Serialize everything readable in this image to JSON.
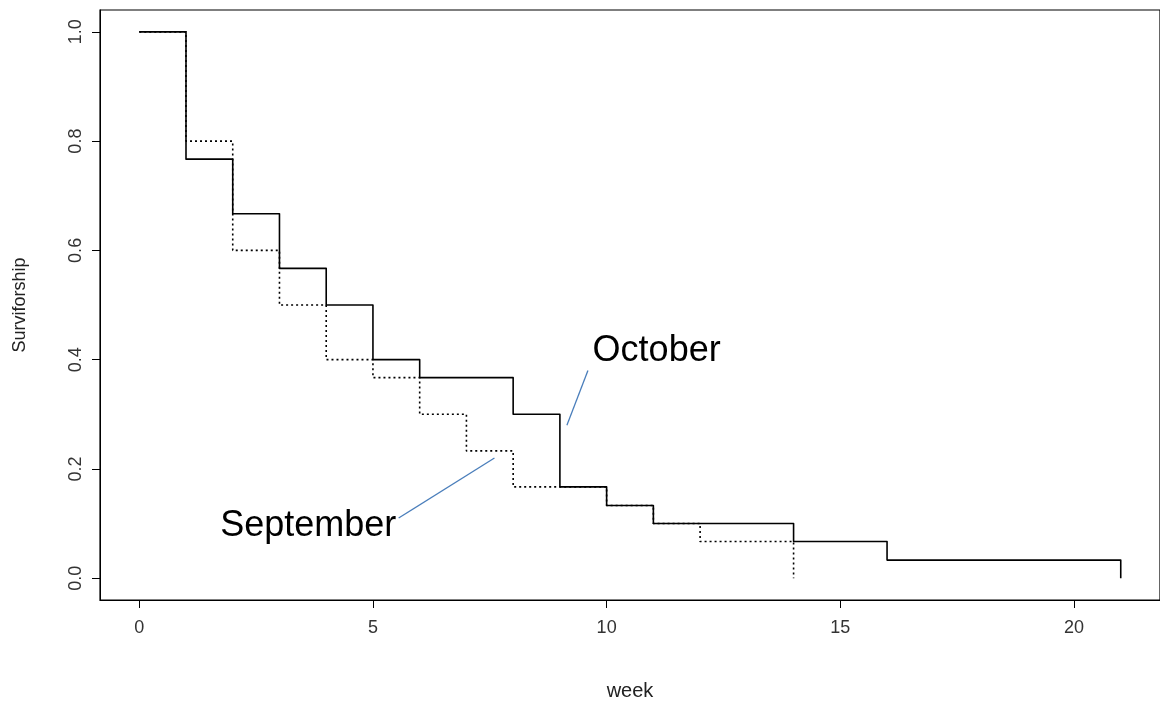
{
  "chart_data": {
    "type": "step",
    "xlabel": "week",
    "ylabel": "Surviforship",
    "xlim": [
      -0.84,
      21.84
    ],
    "xticks": [
      0,
      5,
      10,
      15,
      20
    ],
    "ylim": [
      -0.04,
      1.04
    ],
    "yticks": [
      {
        "value": 0,
        "label": "0.0"
      },
      0.2,
      0.4,
      0.6,
      0.8,
      {
        "value": 1,
        "label": "1.0"
      }
    ],
    "grid": false,
    "legend": false,
    "marker": "none",
    "series": [
      {
        "name": "October",
        "color": "#000000",
        "line_style": "solid",
        "x": [
          0,
          1,
          2,
          3,
          4,
          5,
          6,
          8,
          9,
          10,
          11,
          14,
          16,
          21
        ],
        "values": [
          1,
          0.767,
          0.667,
          0.567,
          0.5,
          0.4,
          0.367,
          0.3,
          0.167,
          0.133,
          0.1,
          0.067,
          0.033,
          0
        ]
      },
      {
        "name": "September",
        "color": "#000000",
        "line_style": "dotted",
        "x": [
          0,
          1,
          2,
          3,
          4,
          5,
          6,
          7,
          8,
          10,
          11,
          12,
          14
        ],
        "values": [
          1,
          0.8,
          0.6,
          0.5,
          0.4,
          0.367,
          0.3,
          0.233,
          0.167,
          0.133,
          0.1,
          0.067,
          0
        ]
      }
    ]
  }
}
